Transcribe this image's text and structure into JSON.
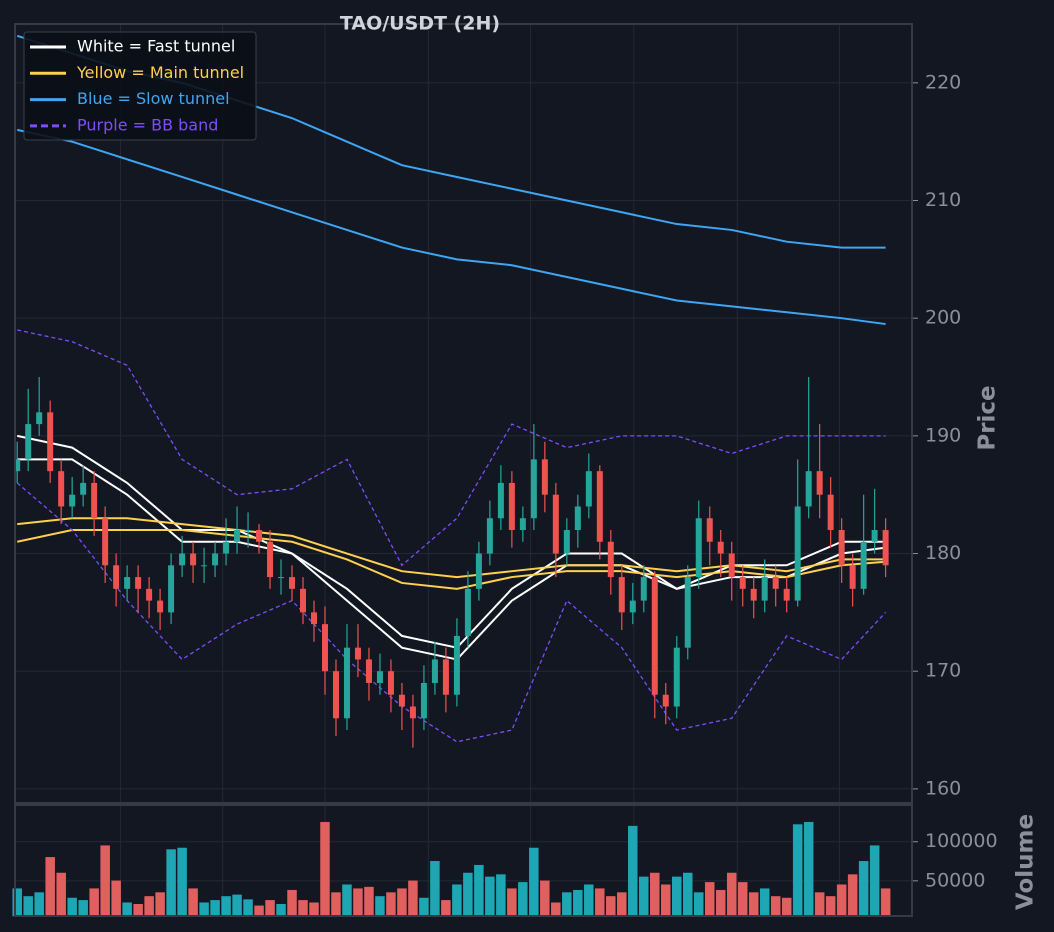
{
  "chart_data": [
    {
      "type": "candlestick",
      "title": "TAO/USDT (2H)",
      "ylabel": "Price",
      "ylim": [
        158.8,
        225
      ],
      "yticks": [
        160,
        170,
        180,
        190,
        200,
        210,
        220
      ],
      "xlim": [
        -0.2,
        81.4
      ],
      "xticks": [
        9.4,
        18.7,
        28,
        37.4,
        46.7,
        56.1,
        65.5,
        74.8
      ],
      "grid": true,
      "legend": "upper left",
      "up_color": "#26a69a",
      "down_color": "#ef5350",
      "open": [
        187,
        188,
        191,
        192,
        187,
        184,
        185,
        186,
        183,
        179,
        177,
        178,
        177,
        176,
        175,
        179,
        180,
        179,
        179,
        180,
        181,
        182,
        182,
        181,
        178,
        178,
        177,
        175,
        174,
        170,
        166,
        172,
        171,
        169,
        170,
        168,
        167,
        166,
        169,
        171,
        168,
        173,
        177,
        180,
        183,
        186,
        182,
        183,
        188,
        185,
        180,
        182,
        184,
        187,
        181,
        178,
        175,
        176,
        178,
        168,
        167,
        172,
        178,
        183,
        181,
        180,
        178,
        177,
        176,
        178,
        177,
        176,
        184,
        187,
        185,
        182,
        179,
        177,
        181,
        182
      ],
      "high": [
        189.5,
        194,
        195,
        193,
        188,
        186.5,
        187.5,
        187,
        184,
        180,
        179,
        179,
        178,
        177,
        180,
        181.5,
        181,
        180.5,
        181,
        183,
        184,
        183.5,
        182.5,
        182,
        179.5,
        179,
        178,
        176,
        175.5,
        171,
        174,
        174,
        172,
        171.5,
        171,
        169,
        168,
        170.5,
        172.5,
        172,
        174.5,
        178.5,
        181,
        184.5,
        187.5,
        187,
        184,
        191,
        189.5,
        186,
        183,
        185,
        188.5,
        187.5,
        182,
        179,
        177.5,
        179,
        178.5,
        169,
        173,
        179,
        184.5,
        184,
        182,
        181,
        179,
        178,
        179.5,
        179,
        178,
        188,
        195,
        191,
        186.5,
        183,
        180,
        185,
        185.5,
        183
      ],
      "low": [
        186,
        187,
        190,
        186,
        182.5,
        183,
        184,
        181.5,
        177.5,
        175.5,
        176,
        175,
        174.5,
        173.5,
        174,
        178,
        177.5,
        177.5,
        178,
        179,
        180,
        180.5,
        180,
        177,
        176.5,
        176,
        174,
        172.5,
        168,
        164.5,
        165,
        169.5,
        167.5,
        168,
        166.5,
        165,
        163.5,
        165,
        168,
        166.5,
        167,
        172,
        176,
        179,
        182,
        180.5,
        181,
        182,
        183.5,
        178,
        179,
        180.5,
        183,
        179.5,
        176.5,
        173.5,
        174,
        175,
        166,
        165.5,
        166,
        171,
        177,
        179,
        178,
        176,
        175.5,
        174.5,
        175,
        175.5,
        175,
        175.5,
        183,
        183,
        180.5,
        177.5,
        175.5,
        176.5,
        180,
        178
      ],
      "close": [
        188,
        191,
        192,
        187,
        184,
        185,
        186,
        183,
        179,
        177,
        178,
        177,
        176,
        175,
        179,
        180,
        179,
        179,
        180,
        181,
        182,
        182,
        181,
        178,
        178,
        177,
        175,
        174,
        170,
        166,
        172,
        171,
        169,
        170,
        168,
        167,
        166,
        169,
        171,
        168,
        173,
        177,
        180,
        183,
        186,
        182,
        183,
        188,
        185,
        180,
        182,
        184,
        187,
        181,
        178,
        175,
        176,
        178,
        168,
        167,
        172,
        178,
        183,
        181,
        180,
        178,
        177,
        176,
        178,
        177,
        176,
        184,
        187,
        185,
        182,
        179,
        177,
        181,
        182,
        179
      ],
      "lines": [
        {
          "name": "White = Fast tunnel",
          "color": "#ffffff",
          "dashed": false,
          "x": [
            0,
            5,
            10,
            15,
            20,
            25,
            30,
            35,
            40,
            45,
            50,
            55,
            60,
            65,
            70,
            75,
            79
          ],
          "upper": [
            190,
            189,
            186,
            182,
            182,
            180,
            177,
            173,
            172,
            177,
            180,
            180,
            177,
            179,
            179,
            181,
            181
          ],
          "lower": [
            188,
            188,
            185,
            181,
            181,
            180,
            176,
            172,
            171,
            176,
            179,
            179,
            177,
            178,
            178,
            180,
            180.5
          ]
        },
        {
          "name": "Yellow = Main tunnel",
          "color": "#ffd04d",
          "dashed": false,
          "x": [
            0,
            5,
            10,
            15,
            20,
            25,
            30,
            35,
            40,
            45,
            50,
            55,
            60,
            65,
            70,
            75,
            79
          ],
          "upper": [
            182.5,
            183,
            183,
            182.5,
            182,
            181.5,
            180,
            178.5,
            178,
            178.5,
            179,
            179,
            178.5,
            179,
            178.5,
            179.5,
            179.5
          ],
          "lower": [
            181,
            182,
            182,
            182,
            181.5,
            181,
            179.5,
            177.5,
            177,
            178,
            178.5,
            178.5,
            178,
            178.5,
            178,
            179,
            179.3
          ]
        },
        {
          "name": "Blue = Slow tunnel",
          "color": "#3ea6f2",
          "dashed": false,
          "x": [
            0,
            5,
            10,
            15,
            20,
            25,
            30,
            35,
            40,
            45,
            50,
            55,
            60,
            65,
            70,
            75,
            79
          ],
          "upper": [
            224,
            222.5,
            221,
            220,
            218.5,
            217,
            215,
            213,
            212,
            211,
            210,
            209,
            208,
            207.5,
            206.5,
            206,
            206
          ],
          "lower": [
            216,
            215,
            213.5,
            212,
            210.5,
            209,
            207.5,
            206,
            205,
            204.5,
            203.5,
            202.5,
            201.5,
            201,
            200.5,
            200,
            199.5
          ]
        },
        {
          "name": "Purple = BB band",
          "color": "#7c4dff",
          "dashed": true,
          "x": [
            0,
            5,
            10,
            15,
            20,
            25,
            30,
            35,
            40,
            45,
            50,
            55,
            60,
            65,
            70,
            75,
            79
          ],
          "upper": [
            199,
            198,
            196,
            188,
            185,
            185.5,
            188,
            179,
            183,
            191,
            189,
            190,
            190,
            188.5,
            190,
            190,
            190
          ],
          "lower": [
            186,
            182,
            176,
            171,
            174,
            176,
            171,
            167,
            164,
            165,
            176,
            172,
            165,
            166,
            173,
            171,
            175
          ]
        }
      ]
    },
    {
      "type": "bar",
      "ylabel": "Volume",
      "ylim": [
        5000,
        147000
      ],
      "yticks": [
        50000,
        100000
      ],
      "values": [
        40000,
        30000,
        35000,
        80000,
        60000,
        28000,
        25000,
        40000,
        95000,
        50000,
        22000,
        20000,
        30000,
        35000,
        90000,
        92000,
        40000,
        22000,
        25000,
        30000,
        32000,
        26000,
        18000,
        25000,
        20000,
        38000,
        25000,
        22000,
        125000,
        35000,
        45000,
        40000,
        42000,
        30000,
        35000,
        40000,
        50000,
        28000,
        75000,
        25000,
        45000,
        60000,
        70000,
        55000,
        58000,
        40000,
        48000,
        92000,
        50000,
        22000,
        35000,
        38000,
        45000,
        40000,
        30000,
        35000,
        120000,
        55000,
        60000,
        45000,
        55000,
        60000,
        35000,
        48000,
        38000,
        60000,
        48000,
        35000,
        40000,
        30000,
        28000,
        122000,
        125000,
        35000,
        30000,
        45000,
        58000,
        75000,
        95000,
        40000
      ]
    }
  ]
}
